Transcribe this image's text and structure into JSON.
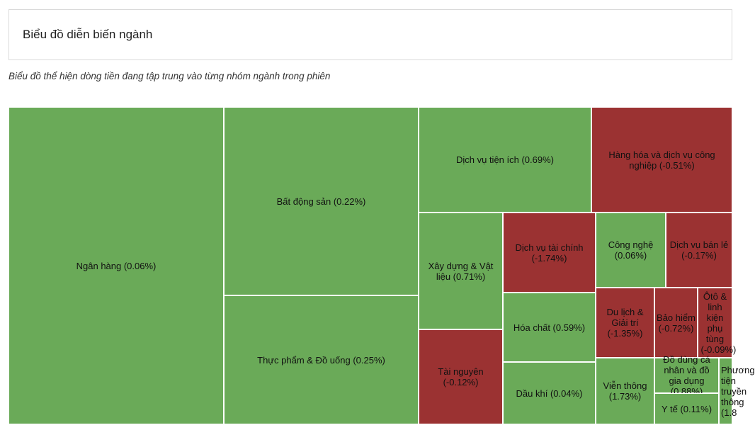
{
  "header": {
    "title": "Biểu đồ diễn biến ngành"
  },
  "subtitle": "Biểu đồ thể hiện dòng tiền đang tập trung vào từng nhóm ngành trong phiên",
  "colors": {
    "up": "#6aaa58",
    "down": "#9b3232"
  },
  "chart_data": {
    "type": "treemap",
    "title": "Biểu đồ diễn biến ngành",
    "subtitle": "Biểu đồ thể hiện dòng tiền đang tập trung vào từng nhóm ngành trong phiên",
    "items": [
      {
        "name": "Ngân hàng",
        "change": 0.06,
        "label": "Ngân hàng (0.06%)"
      },
      {
        "name": "Bất động sản",
        "change": 0.22,
        "label": "Bất động sản (0.22%)"
      },
      {
        "name": "Thực phẩm & Đồ uống",
        "change": 0.25,
        "label": "Thực phẩm & Đồ uống (0.25%)"
      },
      {
        "name": "Dịch vụ tiện ích",
        "change": 0.69,
        "label": "Dịch vụ tiện ích (0.69%)"
      },
      {
        "name": "Hàng hóa và dịch vụ công nghiệp",
        "change": -0.51,
        "label": "Hàng hóa và dịch vụ công nghiệp (-0.51%)"
      },
      {
        "name": "Xây dựng & Vật liệu",
        "change": 0.71,
        "label": "Xây dựng & Vật liệu (0.71%)"
      },
      {
        "name": "Dịch vụ tài chính",
        "change": -1.74,
        "label": "Dịch vụ tài chính (-1.74%)"
      },
      {
        "name": "Công nghệ",
        "change": 0.06,
        "label": "Công nghệ (0.06%)"
      },
      {
        "name": "Dịch vụ bán lẻ",
        "change": -0.17,
        "label": "Dịch vụ bán lẻ (-0.17%)"
      },
      {
        "name": "Hóa chất",
        "change": 0.59,
        "label": "Hóa chất (0.59%)"
      },
      {
        "name": "Du lịch & Giải trí",
        "change": -1.35,
        "label": "Du lịch & Giải trí (-1.35%)"
      },
      {
        "name": "Bảo hiểm",
        "change": -0.72,
        "label": "Bảo hiểm (-0.72%)"
      },
      {
        "name": "Ôtô & linh kiện phụ tùng",
        "change": -0.09,
        "label": "Ôtô & linh kiện phụ tùng (-0.09%)"
      },
      {
        "name": "Tài nguyên",
        "change": -0.12,
        "label": "Tài nguyên (-0.12%)"
      },
      {
        "name": "Dầu khí",
        "change": 0.04,
        "label": "Dầu khí (0.04%)"
      },
      {
        "name": "Viễn thông",
        "change": 1.73,
        "label": "Viễn thông (1.73%)"
      },
      {
        "name": "Đồ dùng cá nhân và đồ gia dụng",
        "change": 0.88,
        "label": "Đồ dùng cá nhân và đồ gia dụng (0.88%)"
      },
      {
        "name": "Y tế",
        "change": 0.11,
        "label": "Y tế (0.11%)"
      },
      {
        "name": "Phương tiện truyền thông",
        "change": 1.8,
        "label": "Phương tiện truyền thông (1.8"
      }
    ]
  }
}
